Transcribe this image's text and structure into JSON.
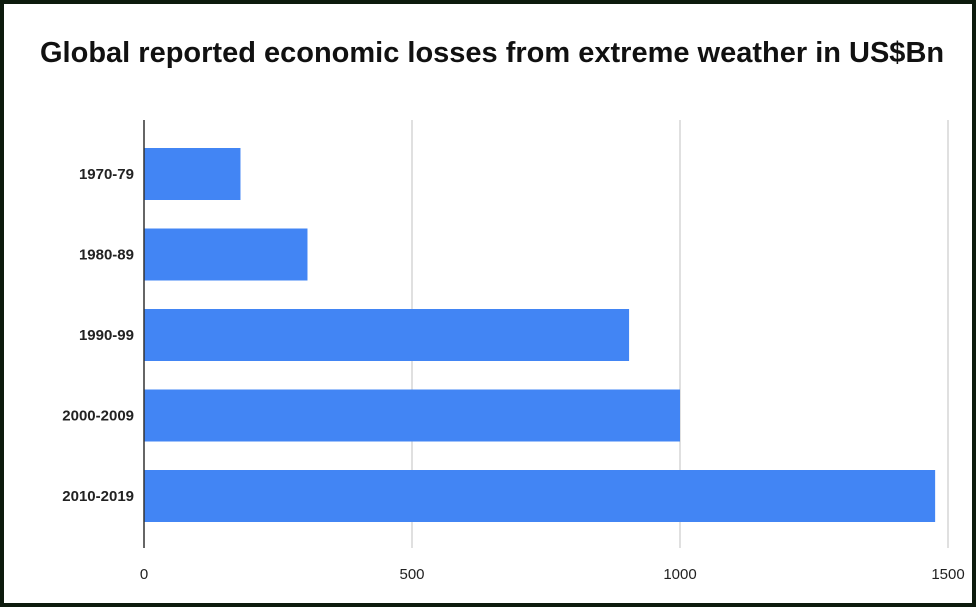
{
  "chart_data": {
    "type": "bar",
    "orientation": "horizontal",
    "title": "Global reported economic losses from extreme weather in US$Bn",
    "xlabel": "",
    "ylabel": "",
    "categories": [
      "1970-79",
      "1980-89",
      "1990-99",
      "2000-2009",
      "2010-2019"
    ],
    "values": [
      180,
      305,
      905,
      1000,
      1476
    ],
    "xlim": [
      0,
      1500
    ],
    "x_ticks": [
      0,
      500,
      1000,
      1500
    ],
    "x_tick_labels": [
      "0",
      "500",
      "1000",
      "1500"
    ],
    "grid": "vertical",
    "legend": "none",
    "bar_color": "#4285f4"
  }
}
